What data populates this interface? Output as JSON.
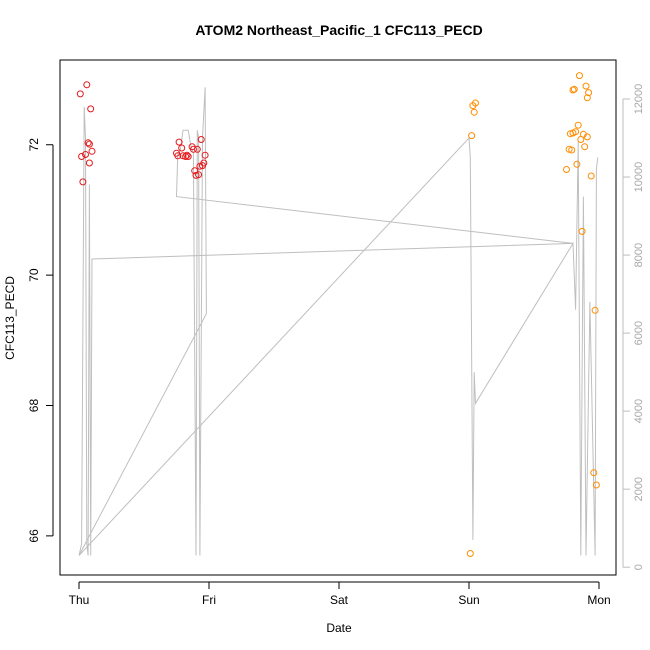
{
  "chart_data": {
    "type": "scatter",
    "title": "ATOM2 Northeast_Pacific_1 CFC113_PECD",
    "xlabel": "Date",
    "ylabel": "CFC113_PECD",
    "x_ticks": [
      "Thu",
      "Fri",
      "Sat",
      "Sun",
      "Mon"
    ],
    "x_range": [
      0,
      4.1
    ],
    "y_ticks": [
      66,
      68,
      70,
      72
    ],
    "ylim": [
      65.4,
      73.3
    ],
    "right_ticks": [
      0,
      2000,
      4000,
      6000,
      8000,
      10000,
      12000
    ],
    "right_range": [
      -200,
      13000
    ],
    "colors": {
      "early": "#e41a1c",
      "late": "#ff8c00",
      "line": "#bfbfbf"
    },
    "series": [
      {
        "values": [
          [
            0.01,
            72.78
          ],
          [
            0.02,
            71.82
          ],
          [
            0.03,
            71.43
          ],
          [
            0.05,
            71.85
          ],
          [
            0.06,
            72.92
          ],
          [
            0.07,
            72.03
          ],
          [
            0.08,
            72.01
          ],
          [
            0.08,
            71.72
          ],
          [
            0.09,
            72.55
          ],
          [
            0.1,
            71.9
          ],
          [
            0.75,
            71.87
          ],
          [
            0.76,
            71.83
          ],
          [
            0.77,
            72.04
          ],
          [
            0.79,
            71.95
          ],
          [
            0.8,
            71.83
          ],
          [
            0.82,
            71.82
          ],
          [
            0.83,
            71.84
          ],
          [
            0.84,
            71.82
          ],
          [
            0.87,
            71.97
          ],
          [
            0.88,
            71.93
          ],
          [
            0.89,
            71.6
          ],
          [
            0.9,
            71.53
          ],
          [
            0.91,
            71.93
          ],
          [
            0.92,
            71.54
          ],
          [
            0.93,
            71.67
          ],
          [
            0.94,
            72.08
          ],
          [
            0.95,
            71.68
          ],
          [
            0.96,
            71.72
          ],
          [
            0.97,
            71.84
          ]
        ]
      },
      {
        "values": [
          [
            3.01,
            65.73
          ],
          [
            3.02,
            72.14
          ],
          [
            3.03,
            72.6
          ],
          [
            3.04,
            72.5
          ],
          [
            3.05,
            72.64
          ],
          [
            3.75,
            71.62
          ],
          [
            3.77,
            71.93
          ],
          [
            3.78,
            72.17
          ],
          [
            3.79,
            71.92
          ],
          [
            3.8,
            72.84
          ],
          [
            3.8,
            72.18
          ],
          [
            3.81,
            72.85
          ],
          [
            3.82,
            72.2
          ],
          [
            3.83,
            71.7
          ],
          [
            3.84,
            72.3
          ],
          [
            3.85,
            73.06
          ],
          [
            3.86,
            72.08
          ],
          [
            3.87,
            70.67
          ],
          [
            3.88,
            72.16
          ],
          [
            3.89,
            71.97
          ],
          [
            3.9,
            72.9
          ],
          [
            3.91,
            72.12
          ],
          [
            3.91,
            72.72
          ],
          [
            3.92,
            72.8
          ],
          [
            3.94,
            71.52
          ],
          [
            3.96,
            66.97
          ],
          [
            3.97,
            69.46
          ],
          [
            3.98,
            66.78
          ]
        ]
      }
    ],
    "line_series": {
      "values": [
        [
          0.0,
          300
        ],
        [
          0.02,
          600
        ],
        [
          0.04,
          11800
        ],
        [
          0.05,
          11000
        ],
        [
          0.06,
          600
        ],
        [
          0.07,
          300
        ],
        [
          0.08,
          9800
        ],
        [
          0.09,
          300
        ],
        [
          0.1,
          7900
        ],
        [
          3.8,
          8300
        ],
        [
          0.75,
          9500
        ],
        [
          0.76,
          10600
        ],
        [
          0.78,
          10700
        ],
        [
          0.8,
          11200
        ],
        [
          0.84,
          11200
        ],
        [
          0.86,
          10800
        ],
        [
          0.88,
          10600
        ],
        [
          0.9,
          300
        ],
        [
          0.91,
          11200
        ],
        [
          0.92,
          11000
        ],
        [
          0.93,
          300
        ],
        [
          0.95,
          11000
        ],
        [
          0.97,
          12300
        ],
        [
          0.98,
          6500
        ],
        [
          0.0,
          300
        ],
        [
          3.0,
          11000
        ],
        [
          3.01,
          10500
        ],
        [
          3.03,
          700
        ],
        [
          3.04,
          5000
        ],
        [
          3.05,
          4200
        ],
        [
          3.8,
          8300
        ],
        [
          3.82,
          6600
        ],
        [
          3.84,
          10900
        ],
        [
          3.86,
          300
        ],
        [
          3.88,
          9500
        ],
        [
          3.9,
          300
        ],
        [
          3.93,
          6800
        ],
        [
          3.97,
          300
        ],
        [
          3.98,
          10200
        ],
        [
          3.99,
          10500
        ]
      ]
    }
  }
}
